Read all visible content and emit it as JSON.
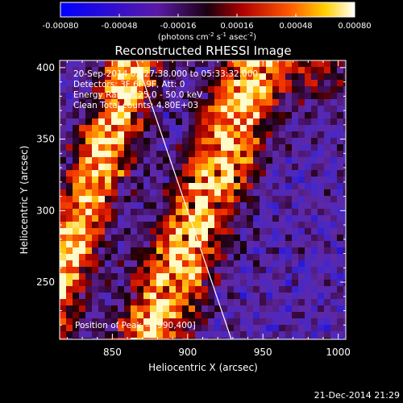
{
  "chart_data": {
    "type": "heatmap",
    "title": "Reconstructed RHESSI Image",
    "xlabel": "Heliocentric X (arcsec)",
    "ylabel": "Heliocentric Y (arcsec)",
    "xlim": [
      815,
      1005
    ],
    "ylim": [
      210,
      405
    ],
    "x_ticks": [
      850,
      900,
      950,
      1000
    ],
    "y_ticks": [
      250,
      300,
      350,
      400
    ],
    "colorbar": {
      "ticks": [
        "-0.00080",
        "-0.00048",
        "-0.00016",
        "0.00016",
        "0.00048",
        "0.00080"
      ],
      "range": [
        -0.0008,
        0.0008
      ],
      "unit_prefix": "(photons cm",
      "unit_exp1": "-2",
      "unit_mid": " s",
      "unit_exp2": "-1",
      "unit_mid2": " asec",
      "unit_exp3": "-2",
      "unit_suffix": ")"
    },
    "annotations": {
      "time": "20-Sep-2014 05:27:38.000 to 05:33:32.000",
      "detectors": "Detectors: 3F 6F 9F, Att: 0",
      "energy": "Energy Range: 25.0 - 50.0 keV",
      "clean": "Clean     Total counts: 4.80E+03",
      "peak": "Position of Peak = [990,400]"
    },
    "limb_line": {
      "start": [
        866,
        405
      ],
      "end": [
        929,
        210
      ]
    },
    "bands": [
      {
        "x_at_ymax": 866,
        "x_at_ymin": 800,
        "width": 22
      },
      {
        "x_at_ymax": 948,
        "x_at_ymin": 875,
        "width": 28
      }
    ],
    "peak": [
      990,
      400
    ]
  },
  "footer": {
    "timestamp": "21-Dec-2014 21:29"
  }
}
